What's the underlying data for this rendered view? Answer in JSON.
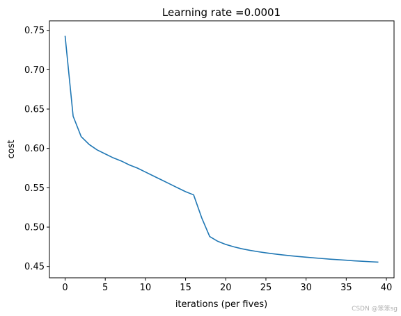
{
  "watermark": "CSDN @笨笨sg",
  "chart_data": {
    "type": "line",
    "title": "Learning rate =0.0001",
    "xlabel": "iterations (per fives)",
    "ylabel": "cost",
    "xlim": [
      -1.95,
      40.95
    ],
    "ylim": [
      0.4356,
      0.7621
    ],
    "xticks": [
      0,
      5,
      10,
      15,
      20,
      25,
      30,
      35,
      40
    ],
    "yticks": [
      0.45,
      0.5,
      0.55,
      0.6,
      0.65,
      0.7,
      0.75
    ],
    "xtick_labels": [
      "0",
      "5",
      "10",
      "15",
      "20",
      "25",
      "30",
      "35",
      "40"
    ],
    "ytick_labels": [
      "0.45",
      "0.50",
      "0.55",
      "0.60",
      "0.65",
      "0.70",
      "0.75"
    ],
    "grid": false,
    "color": "#1f77b4",
    "series": [
      {
        "x": [
          0,
          1,
          2,
          3,
          4,
          5,
          6,
          7,
          8,
          9,
          10,
          11,
          12,
          13,
          14,
          15,
          16,
          17,
          18,
          19,
          20,
          21,
          22,
          23,
          24,
          25,
          26,
          27,
          28,
          29,
          30,
          31,
          32,
          33,
          34,
          35,
          36,
          37,
          38,
          39
        ],
        "values": [
          0.743,
          0.641,
          0.615,
          0.605,
          0.598,
          0.593,
          0.588,
          0.584,
          0.579,
          0.575,
          0.57,
          0.565,
          0.56,
          0.555,
          0.55,
          0.545,
          0.541,
          0.512,
          0.488,
          0.482,
          0.478,
          0.475,
          0.4725,
          0.4705,
          0.4688,
          0.4673,
          0.466,
          0.4648,
          0.4637,
          0.4627,
          0.4618,
          0.4609,
          0.4601,
          0.4593,
          0.4586,
          0.4579,
          0.4572,
          0.4566,
          0.456,
          0.4555
        ]
      }
    ]
  }
}
